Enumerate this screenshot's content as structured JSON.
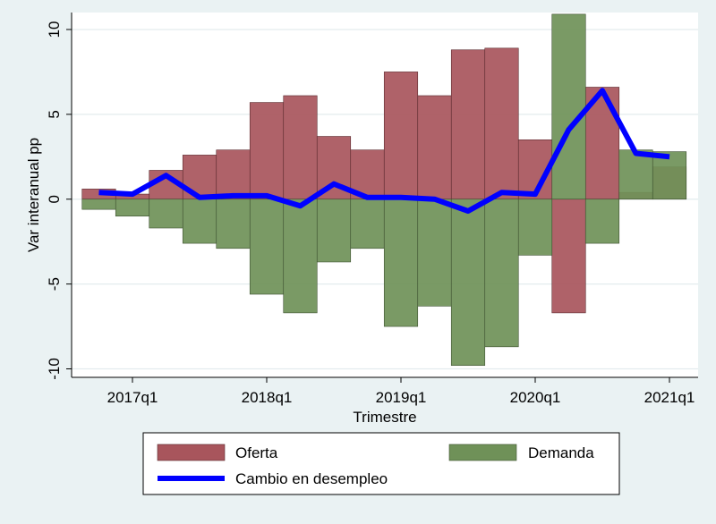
{
  "chart_data": {
    "type": "bar",
    "subtype": "stacked-bar-with-line",
    "xlabel": "Trimestre",
    "ylabel": "Var interanual pp",
    "ylim": [
      -10.5,
      11
    ],
    "yticks": [
      -10,
      -5,
      0,
      5,
      10
    ],
    "ytick_labels": [
      "-10",
      "-5",
      "0",
      "5",
      "10"
    ],
    "xticks": [
      "2017q1",
      "2018q1",
      "2019q1",
      "2020q1",
      "2021q1"
    ],
    "grid": true,
    "legend_position": "bottom",
    "categories": [
      "2016q4",
      "2017q1",
      "2017q2",
      "2017q3",
      "2017q4",
      "2018q1",
      "2018q2",
      "2018q3",
      "2018q4",
      "2019q1",
      "2019q2",
      "2019q3",
      "2019q4",
      "2020q1",
      "2020q2",
      "2020q3",
      "2020q4",
      "2021q1"
    ],
    "series": [
      {
        "name": "Oferta",
        "kind": "bar",
        "color": "#a8555c",
        "values": [
          0.6,
          0.3,
          1.7,
          2.6,
          2.9,
          5.7,
          6.1,
          3.7,
          2.9,
          7.5,
          6.1,
          8.8,
          8.9,
          3.5,
          -6.7,
          6.6,
          0.4,
          1.9
        ]
      },
      {
        "name": "Demanda",
        "kind": "bar",
        "color": "#6f9158",
        "values": [
          -0.6,
          -1.0,
          -1.7,
          -2.6,
          -2.9,
          -5.6,
          -6.7,
          -3.7,
          -2.9,
          -7.5,
          -6.3,
          -9.8,
          -8.7,
          -3.3,
          10.9,
          -2.6,
          2.9,
          2.8
        ]
      },
      {
        "name": "Cambio en desempleo",
        "kind": "line",
        "color": "#0000ff",
        "values": [
          0.4,
          0.3,
          1.4,
          0.1,
          0.2,
          0.2,
          -0.4,
          0.9,
          0.1,
          0.1,
          0.0,
          -0.7,
          0.4,
          0.3,
          4.1,
          6.4,
          2.7,
          2.5
        ]
      }
    ]
  },
  "legend": {
    "items": [
      {
        "label": "Oferta",
        "color": "#a8555c",
        "kind": "bar"
      },
      {
        "label": "Demanda",
        "color": "#6f9158",
        "kind": "bar"
      },
      {
        "label": "Cambio en desempleo",
        "color": "#0000ff",
        "kind": "line"
      }
    ]
  }
}
